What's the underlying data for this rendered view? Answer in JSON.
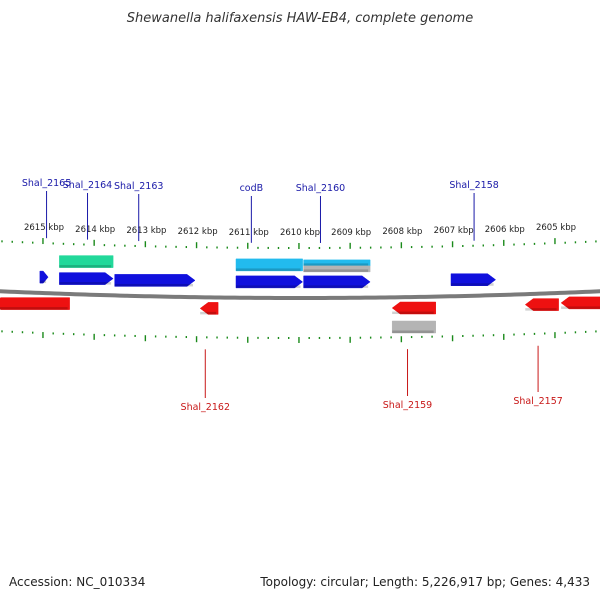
{
  "title": "Shewanella halifaxensis HAW-EB4, complete genome",
  "footer": {
    "accession": "Accession: NC_010334",
    "summary": "Topology: circular; Length: 5,226,917 bp; Genes: 4,433"
  },
  "colors": {
    "forward_gene": "#1010dd",
    "reverse_gene": "#ee1111",
    "rrna_green": "#22d89a",
    "rna_cyan": "#22bbee",
    "pseudo_gray": "#b4b4b4",
    "tick_green": "#1a8a1a",
    "backbone": "#7a7a7a",
    "label_blue": "#1a1aa8",
    "label_red": "#c81818"
  },
  "scale_labels": [
    {
      "kbp": 2615,
      "text": "2615 kbp"
    },
    {
      "kbp": 2614,
      "text": "2614 kbp"
    },
    {
      "kbp": 2613,
      "text": "2613 kbp"
    },
    {
      "kbp": 2612,
      "text": "2612 kbp"
    },
    {
      "kbp": 2611,
      "text": "2611 kbp"
    },
    {
      "kbp": 2610,
      "text": "2610 kbp"
    },
    {
      "kbp": 2609,
      "text": "2609 kbp"
    },
    {
      "kbp": 2608,
      "text": "2608 kbp"
    },
    {
      "kbp": 2607,
      "text": "2607 kbp"
    },
    {
      "kbp": 2606,
      "text": "2606 kbp"
    },
    {
      "kbp": 2605,
      "text": "2605 kbp"
    }
  ],
  "forward_labels": [
    {
      "name": "Shal_2165",
      "kbp": 2614.95
    },
    {
      "name": "Shal_2164",
      "kbp": 2614.15
    },
    {
      "name": "Shal_2163",
      "kbp": 2613.15
    },
    {
      "name": "codB",
      "kbp": 2610.95
    },
    {
      "name": "Shal_2160",
      "kbp": 2609.6
    },
    {
      "name": "Shal_2158",
      "kbp": 2606.6
    }
  ],
  "reverse_labels": [
    {
      "name": "Shal_2162",
      "kbp": 2611.85
    },
    {
      "name": "Shal_2159",
      "kbp": 2607.9
    },
    {
      "name": "Shal_2157",
      "kbp": 2605.35
    }
  ]
}
